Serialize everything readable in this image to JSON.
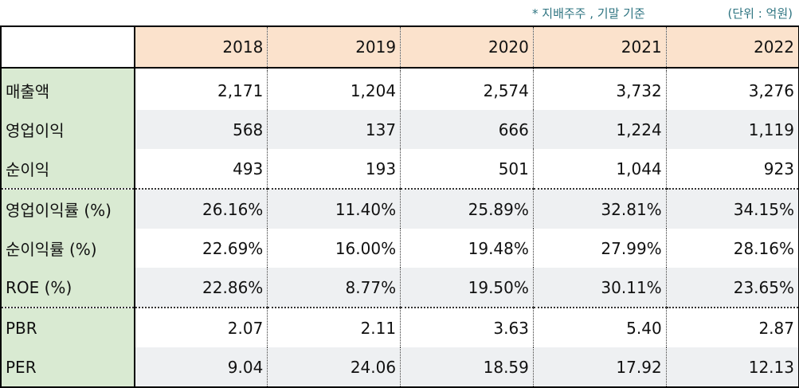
{
  "notes": {
    "basis": "* 지배주주 , 기말 기준",
    "unit": "(단위 : 억원)"
  },
  "years": [
    "2018",
    "2019",
    "2020",
    "2021",
    "2022"
  ],
  "rows": [
    {
      "label": "매출액",
      "values": [
        "2,171",
        "1,204",
        "2,574",
        "3,732",
        "3,276"
      ]
    },
    {
      "label": "영업이익",
      "values": [
        "568",
        "137",
        "666",
        "1,224",
        "1,119"
      ]
    },
    {
      "label": "순이익",
      "values": [
        "493",
        "193",
        "501",
        "1,044",
        "923"
      ]
    },
    {
      "label": "영업이익률 (%)",
      "values": [
        "26.16%",
        "11.40%",
        "25.89%",
        "32.81%",
        "34.15%"
      ]
    },
    {
      "label": "순이익률 (%)",
      "values": [
        "22.69%",
        "16.00%",
        "19.48%",
        "27.99%",
        "28.16%"
      ]
    },
    {
      "label": "ROE (%)",
      "values": [
        "22.86%",
        "8.77%",
        "19.50%",
        "30.11%",
        "23.65%"
      ]
    },
    {
      "label": "PBR",
      "values": [
        "2.07",
        "2.11",
        "3.63",
        "5.40",
        "2.87"
      ]
    },
    {
      "label": "PER",
      "values": [
        "9.04",
        "24.06",
        "18.59",
        "17.92",
        "12.13"
      ]
    }
  ],
  "colors": {
    "header_bg": "#fbe2cc",
    "label_bg": "#d9ead2",
    "alt_row_bg": "#eef0f2",
    "note_text": "#2e7481"
  }
}
